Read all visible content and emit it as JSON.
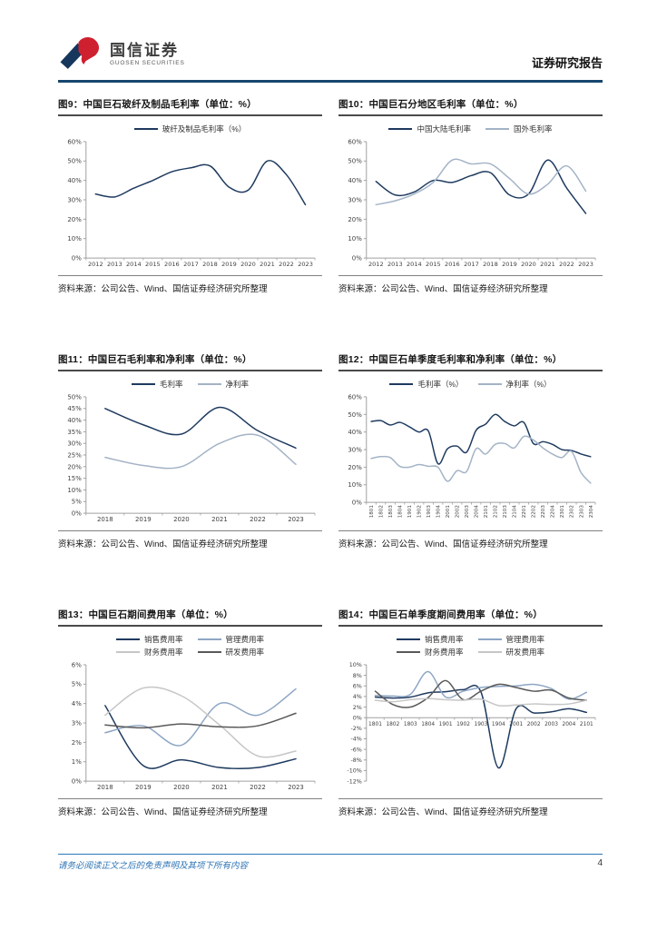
{
  "header": {
    "brand_cn": "国信证券",
    "brand_en": "GUOSEN SECURITIES",
    "report_type": "证券研究报告",
    "rule_color": "#17466e",
    "logo_red": "#cf2030",
    "logo_navy": "#16365c"
  },
  "footer": {
    "disclaimer": "请务必阅读正文之后的免责声明及其项下所有内容",
    "page_number": "4",
    "accent_color": "#2e74b5"
  },
  "source_label": "资料来源：公司公告、Wind、国信证券经济研究所整理",
  "figures": [
    {
      "figure_label": "图9：中国巨石玻纤及制品毛利率（单位：%）",
      "source": "资料来源：公司公告、Wind、国信证券经济研究所整理"
    },
    {
      "figure_label": "图10：中国巨石分地区毛利率（单位：%）",
      "source": "资料来源：公司公告、Wind、国信证券经济研究所整理"
    },
    {
      "figure_label": "图11：中国巨石毛利率和净利率（单位：%）",
      "source": "资料来源：公司公告、Wind、国信证券经济研究所整理"
    },
    {
      "figure_label": "图12：中国巨石单季度毛利率和净利率（单位：%）",
      "source": "资料来源：公司公告、Wind、国信证券经济研究所整理"
    },
    {
      "figure_label": "图13：中国巨石期间费用率（单位：%）",
      "source": "资料来源：公司公告、Wind、国信证券经济研究所整理"
    },
    {
      "figure_label": "图14：中国巨石单季度期间费用率（单位：%）",
      "source": "资料来源：公司公告、Wind、国信证券经济研究所整理"
    }
  ],
  "chart_data": [
    {
      "type": "line",
      "title": "中国巨石玻纤及制品毛利率",
      "categories": [
        "2012",
        "2013",
        "2014",
        "2015",
        "2016",
        "2017",
        "2018",
        "2019",
        "2020",
        "2021",
        "2022",
        "2023"
      ],
      "series": [
        {
          "name": "玻纤及制品毛利率（%）",
          "color": "#1e3a5f",
          "values": [
            33,
            31.5,
            36,
            40,
            44.5,
            46.5,
            47.5,
            36.5,
            35,
            50,
            43,
            27.5
          ]
        }
      ],
      "ylim": [
        0,
        60
      ],
      "ytick_step": 10,
      "x_rotated": false,
      "x_font": 6.6,
      "legend_position": "top",
      "grid": false
    },
    {
      "type": "line",
      "title": "中国巨石分地区毛利率",
      "categories": [
        "2012",
        "2013",
        "2014",
        "2015",
        "2016",
        "2017",
        "2018",
        "2019",
        "2020",
        "2021",
        "2022",
        "2023"
      ],
      "series": [
        {
          "name": "中国大陆毛利率",
          "color": "#1e3a5f",
          "values": [
            39.5,
            32.5,
            34,
            40,
            39,
            42.5,
            44,
            32.5,
            33,
            50.5,
            36,
            23
          ]
        },
        {
          "name": "国外毛利率",
          "color": "#a3b3c6",
          "values": [
            27.5,
            29.5,
            33,
            39,
            50.5,
            48.5,
            48.5,
            41,
            33,
            38,
            47.5,
            34.5
          ]
        }
      ],
      "ylim": [
        0,
        60
      ],
      "ytick_step": 10,
      "x_rotated": false,
      "x_font": 6.6,
      "legend_position": "top",
      "grid": false
    },
    {
      "type": "line",
      "title": "中国巨石毛利率和净利率",
      "categories": [
        "2018",
        "2019",
        "2020",
        "2021",
        "2022",
        "2023"
      ],
      "series": [
        {
          "name": "毛利率",
          "color": "#1e3a5f",
          "values": [
            45,
            38,
            34,
            45.5,
            35.5,
            28
          ]
        },
        {
          "name": "净利率",
          "color": "#a3b3c6",
          "values": [
            24,
            20.5,
            20,
            30,
            33.5,
            21
          ]
        }
      ],
      "ylim": [
        0,
        50
      ],
      "ytick_step": 5,
      "x_rotated": false,
      "x_font": 7,
      "legend_position": "top",
      "grid": false
    },
    {
      "type": "line",
      "title": "中国巨石单季度毛利率和净利率",
      "categories": [
        "1801",
        "1802",
        "1803",
        "1804",
        "1901",
        "1902",
        "1903",
        "1904",
        "2001",
        "2002",
        "2003",
        "2004",
        "2101",
        "2102",
        "2103",
        "2104",
        "2201",
        "2202",
        "2203",
        "2204",
        "2301",
        "2302",
        "2303",
        "2304"
      ],
      "series": [
        {
          "name": "毛利率（%）",
          "color": "#1e3a5f",
          "values": [
            46,
            46.5,
            44,
            45.5,
            43,
            40,
            40.5,
            22,
            30.5,
            32,
            28.5,
            41,
            44.5,
            50,
            46,
            43.5,
            45.5,
            33.5,
            34.5,
            33,
            30,
            29.5,
            27.5,
            26
          ]
        },
        {
          "name": "净利率（%）",
          "color": "#a3b3c6",
          "values": [
            25,
            26,
            25.5,
            20.5,
            20,
            21.5,
            20.5,
            20,
            12,
            18,
            17.5,
            30.5,
            27.5,
            33,
            33.5,
            31,
            37.5,
            35.5,
            31,
            27.5,
            25.5,
            29,
            17,
            11
          ]
        }
      ],
      "ylim": [
        0,
        60
      ],
      "ytick_step": 10,
      "x_rotated": true,
      "x_font": 5.6,
      "legend_position": "top",
      "grid": false
    },
    {
      "type": "line",
      "title": "中国巨石期间费用率",
      "categories": [
        "2018",
        "2019",
        "2020",
        "2021",
        "2022",
        "2023"
      ],
      "series": [
        {
          "name": "销售费用率",
          "color": "#1e3a5f",
          "values": [
            3.9,
            0.8,
            1.1,
            0.7,
            0.7,
            1.15
          ]
        },
        {
          "name": "管理费用率",
          "color": "#8ea6c4",
          "values": [
            2.5,
            2.85,
            1.85,
            4.0,
            3.4,
            4.75
          ]
        },
        {
          "name": "财务费用率",
          "color": "#c6c6c6",
          "values": [
            3.4,
            4.8,
            4.4,
            2.9,
            1.3,
            1.55
          ]
        },
        {
          "name": "研发费用率",
          "color": "#595959",
          "values": [
            2.9,
            2.75,
            2.95,
            2.8,
            2.85,
            3.5
          ]
        }
      ],
      "ylim": [
        0,
        6
      ],
      "ytick_step": 1,
      "x_rotated": false,
      "x_font": 7,
      "legend_position": "top",
      "grid": false
    },
    {
      "type": "line",
      "title": "中国巨石单季度期间费用率",
      "categories": [
        "1801",
        "1802",
        "1803",
        "1804",
        "1901",
        "1902",
        "1903",
        "1904",
        "2001",
        "2002",
        "2003",
        "2004",
        "2101"
      ],
      "series": [
        {
          "name": "销售费用率",
          "color": "#1e3a5f",
          "values": [
            3.9,
            3.7,
            3.9,
            4.7,
            4.9,
            5.3,
            4.9,
            -9.5,
            1.7,
            0.9,
            1.1,
            1.7,
            1.0
          ]
        },
        {
          "name": "管理费用率",
          "color": "#8ea6c4",
          "values": [
            4.2,
            4.1,
            4.4,
            8.7,
            3.9,
            5.0,
            5.7,
            5.9,
            6.0,
            6.3,
            5.5,
            3.5,
            4.8
          ]
        },
        {
          "name": "财务费用率",
          "color": "#595959",
          "values": [
            5.0,
            2.5,
            2.0,
            3.8,
            7.0,
            3.4,
            5.0,
            6.3,
            5.7,
            5.0,
            5.2,
            3.7,
            3.3
          ]
        },
        {
          "name": "研发费用率",
          "color": "#c6c6c6",
          "values": [
            3.3,
            3.0,
            3.4,
            3.6,
            3.4,
            3.3,
            3.5,
            2.3,
            2.4,
            2.6,
            2.5,
            2.6,
            3.3
          ]
        }
      ],
      "ylim": [
        -12,
        10
      ],
      "ytick_step": 2,
      "x_rotated": false,
      "x_font": 5.9,
      "legend_position": "top",
      "grid": false
    }
  ]
}
